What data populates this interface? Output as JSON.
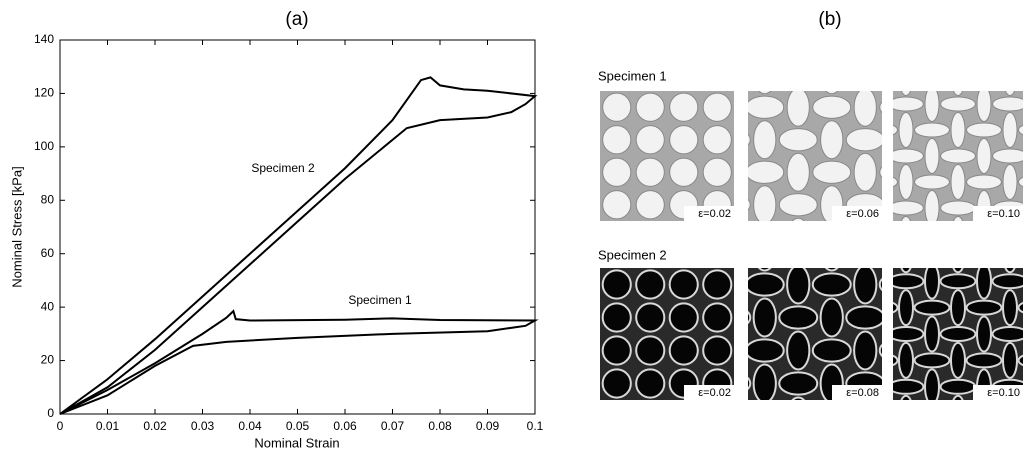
{
  "chart_data": {
    "type": "line",
    "title": "(a)",
    "x_label": "Nominal Strain",
    "y_label": "Nominal Stress [kPa]",
    "xlim": [
      0,
      0.1
    ],
    "xticks": [
      0,
      0.01,
      0.02,
      0.03,
      0.04,
      0.05,
      0.06,
      0.07,
      0.08,
      0.09,
      0.1
    ],
    "ylim": [
      0,
      140
    ],
    "yticks": [
      0,
      20,
      40,
      60,
      80,
      100,
      120,
      140
    ],
    "grid": false,
    "series": [
      {
        "name": "Specimen 1",
        "color": "#000000",
        "x": [
          0,
          0.01,
          0.02,
          0.03,
          0.035,
          0.0365,
          0.037,
          0.04,
          0.06,
          0.07,
          0.08,
          0.1,
          0.098,
          0.09,
          0.07,
          0.05,
          0.035,
          0.028,
          0.02,
          0.01,
          0
        ],
        "values": [
          0,
          9,
          19,
          30,
          36,
          38.5,
          35.5,
          35,
          35.3,
          35.8,
          35.2,
          35,
          33,
          31,
          30,
          28.5,
          27,
          25.5,
          18,
          7,
          0
        ]
      },
      {
        "name": "Specimen 2",
        "color": "#000000",
        "x": [
          0,
          0.01,
          0.02,
          0.03,
          0.04,
          0.05,
          0.06,
          0.07,
          0.076,
          0.078,
          0.08,
          0.085,
          0.09,
          0.1,
          0.098,
          0.095,
          0.09,
          0.08,
          0.073,
          0.06,
          0.05,
          0.04,
          0.03,
          0.02,
          0.01,
          0
        ],
        "values": [
          0,
          13,
          28,
          44,
          60,
          76,
          92,
          110,
          125,
          126,
          123,
          121.5,
          121,
          119,
          116,
          113,
          111,
          110,
          107,
          88,
          72,
          56,
          40,
          24,
          10,
          0
        ]
      }
    ]
  },
  "panel_b": {
    "title": "(b)",
    "rows": [
      {
        "label": "Specimen 1",
        "images": [
          {
            "caption": "ε=0.02"
          },
          {
            "caption": "ε=0.06"
          },
          {
            "caption": "ε=0.10"
          }
        ]
      },
      {
        "label": "Specimen 2",
        "images": [
          {
            "caption": "ε=0.02"
          },
          {
            "caption": "ε=0.08"
          },
          {
            "caption": "ε=0.10"
          }
        ]
      }
    ]
  }
}
